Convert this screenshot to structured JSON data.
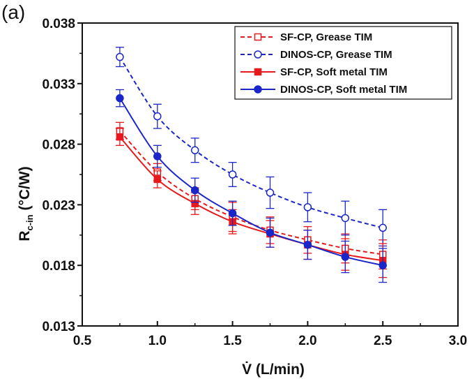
{
  "panel_label": "(a)",
  "chart_data": {
    "type": "line",
    "xlabel": "V̇ (L/min)",
    "ylabel": "R",
    "ylabel_sub": "c-in",
    "ylabel_unit": " (°C/W)",
    "xlim": [
      0.5,
      3.0
    ],
    "ylim": [
      0.013,
      0.038
    ],
    "x_ticks": [
      "0.5",
      "1.0",
      "1.5",
      "2.0",
      "2.5",
      "3.0"
    ],
    "y_ticks": [
      "0.013",
      "0.018",
      "0.023",
      "0.028",
      "0.033",
      "0.038"
    ],
    "grid": false,
    "legend_position": "top-right",
    "x": [
      0.75,
      1.0,
      1.25,
      1.5,
      1.75,
      2.0,
      2.25,
      2.5
    ],
    "series": [
      {
        "name": "SF-CP, Grease TIM",
        "color": "#e8191c",
        "dash": true,
        "marker": "square-open",
        "values": [
          0.0291,
          0.0257,
          0.0235,
          0.022,
          0.0209,
          0.0201,
          0.0194,
          0.0189
        ],
        "errors": [
          0.0007,
          0.0007,
          0.0009,
          0.0012,
          0.0011,
          0.0011,
          0.0012,
          0.0012
        ]
      },
      {
        "name": "DINOS-CP, Grease TIM",
        "color": "#1b26c9",
        "dash": true,
        "marker": "circle-open",
        "values": [
          0.0352,
          0.0303,
          0.0275,
          0.0255,
          0.024,
          0.0228,
          0.0219,
          0.0211
        ],
        "errors": [
          0.0008,
          0.001,
          0.001,
          0.001,
          0.0013,
          0.0012,
          0.0014,
          0.0015
        ]
      },
      {
        "name": "SF-CP, Soft metal TIM",
        "color": "#e8191c",
        "dash": false,
        "marker": "square-filled",
        "values": [
          0.0286,
          0.0251,
          0.0231,
          0.0216,
          0.0206,
          0.0197,
          0.0189,
          0.0184
        ],
        "errors": [
          0.0007,
          0.0007,
          0.0009,
          0.001,
          0.0011,
          0.0012,
          0.0013,
          0.0014
        ]
      },
      {
        "name": "DINOS-CP, Soft metal TIM",
        "color": "#1b26c9",
        "dash": false,
        "marker": "circle-filled",
        "values": [
          0.0318,
          0.027,
          0.0242,
          0.0223,
          0.0207,
          0.0197,
          0.0187,
          0.018
        ],
        "errors": [
          0.0007,
          0.0009,
          0.001,
          0.001,
          0.0012,
          0.0012,
          0.0013,
          0.0014
        ]
      }
    ]
  }
}
